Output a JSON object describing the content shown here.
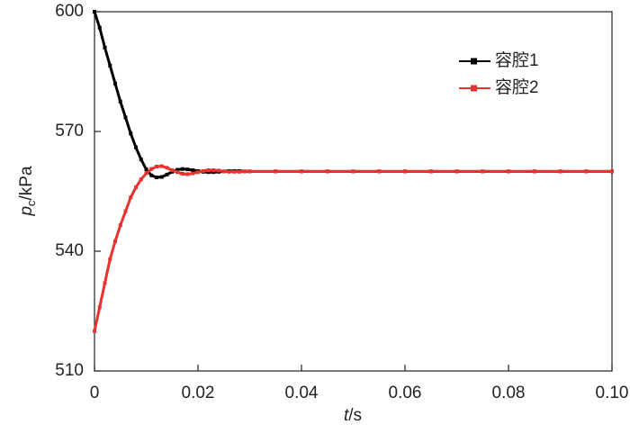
{
  "chart_data": {
    "type": "line",
    "x_label": {
      "symbol": "t",
      "unit": "/s"
    },
    "y_label": {
      "symbol": "p",
      "subscript": "c",
      "unit": "/kPa"
    },
    "x": [
      0,
      0.001,
      0.002,
      0.003,
      0.004,
      0.005,
      0.006,
      0.007,
      0.008,
      0.009,
      0.01,
      0.011,
      0.012,
      0.013,
      0.014,
      0.015,
      0.016,
      0.017,
      0.018,
      0.019,
      0.02,
      0.021,
      0.022,
      0.023,
      0.024,
      0.025,
      0.026,
      0.027,
      0.028,
      0.029,
      0.03,
      0.035,
      0.04,
      0.045,
      0.05,
      0.055,
      0.06,
      0.065,
      0.07,
      0.075,
      0.08,
      0.085,
      0.09,
      0.095,
      0.1
    ],
    "series": [
      {
        "name": "容腔1",
        "color": "#000000",
        "values": [
          600,
          596,
          591,
          586.5,
          582,
          577.5,
          573.5,
          569.5,
          566,
          563,
          560.5,
          559,
          558.5,
          558.6,
          559.2,
          559.9,
          560.4,
          560.6,
          560.5,
          560.3,
          560.1,
          559.9,
          559.8,
          559.8,
          559.9,
          560,
          560.1,
          560.1,
          560.1,
          560,
          560,
          560,
          560,
          560,
          560,
          560,
          560,
          560,
          560,
          560,
          560,
          560,
          560,
          560,
          560
        ]
      },
      {
        "name": "容腔2",
        "color": "#e8322d",
        "values": [
          520,
          526,
          532,
          538,
          542.5,
          546.5,
          550,
          553.5,
          556,
          558,
          559.5,
          560.6,
          561.2,
          561.3,
          560.9,
          560.3,
          559.8,
          559.4,
          559.3,
          559.5,
          559.8,
          560.1,
          560.3,
          560.3,
          560.2,
          560,
          559.9,
          559.9,
          559.9,
          560,
          560,
          560,
          560,
          560,
          560,
          560,
          560,
          560,
          560,
          560,
          560,
          560,
          560,
          560,
          560
        ]
      }
    ],
    "xlim": [
      0,
      0.1
    ],
    "xticks": [
      0,
      0.02,
      0.04,
      0.06,
      0.08,
      {
        "value": 0.1,
        "label": "0.10"
      }
    ],
    "ylim": [
      510,
      600
    ],
    "yticks": [
      510,
      540,
      570,
      600
    ],
    "legend": "upper right"
  }
}
